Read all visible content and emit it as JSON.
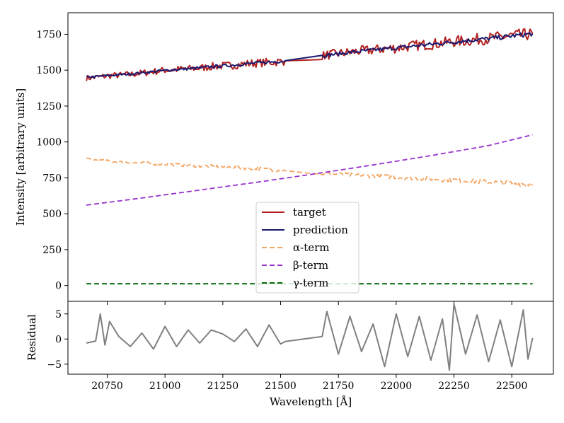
{
  "chart_data": [
    {
      "type": "line",
      "panel": "main",
      "xlabel": "",
      "ylabel": "Intensity [arbitrary units]",
      "xlim": [
        20580,
        22680
      ],
      "ylim": [
        -110,
        1900
      ],
      "x_ticks": [
        20750,
        21000,
        21250,
        21500,
        21750,
        22000,
        22250,
        22500
      ],
      "x_tick_labels": [
        "",
        "",
        "",
        "",
        "",
        "",
        "",
        ""
      ],
      "y_ticks": [
        0,
        250,
        500,
        750,
        1000,
        1250,
        1500,
        1750
      ],
      "y_tick_labels": [
        "0",
        "250",
        "500",
        "750",
        "1000",
        "1250",
        "1500",
        "1750"
      ],
      "legend_position": "center-bottom",
      "gap": [
        21530,
        21670
      ],
      "series": [
        {
          "name": "target",
          "style": "solid",
          "color": "#b22222",
          "x": [
            20660,
            20700,
            20750,
            20800,
            20850,
            20900,
            20950,
            21000,
            21050,
            21100,
            21150,
            21200,
            21250,
            21300,
            21350,
            21400,
            21450,
            21500,
            21520,
            21680,
            21720,
            21750,
            21800,
            21850,
            21900,
            21950,
            22000,
            22050,
            22100,
            22150,
            22200,
            22250,
            22300,
            22350,
            22400,
            22450,
            22500,
            22550,
            22590
          ],
          "y": [
            1445,
            1450,
            1460,
            1465,
            1470,
            1480,
            1490,
            1500,
            1505,
            1510,
            1515,
            1525,
            1530,
            1535,
            1545,
            1550,
            1555,
            1560,
            1565,
            1600,
            1610,
            1615,
            1625,
            1635,
            1640,
            1650,
            1655,
            1665,
            1675,
            1680,
            1690,
            1700,
            1705,
            1715,
            1720,
            1730,
            1740,
            1745,
            1755
          ],
          "noise": 32
        },
        {
          "name": "prediction",
          "style": "solid",
          "color": "#191970",
          "x": [
            20660,
            20700,
            20750,
            20800,
            20850,
            20900,
            20950,
            21000,
            21050,
            21100,
            21150,
            21200,
            21250,
            21300,
            21350,
            21400,
            21450,
            21500,
            21520,
            21680,
            21720,
            21750,
            21800,
            21850,
            21900,
            21950,
            22000,
            22050,
            22100,
            22150,
            22200,
            22250,
            22300,
            22350,
            22400,
            22450,
            22500,
            22550,
            22590
          ],
          "y": [
            1450,
            1455,
            1462,
            1468,
            1474,
            1482,
            1490,
            1498,
            1504,
            1510,
            1516,
            1524,
            1530,
            1536,
            1544,
            1550,
            1556,
            1562,
            1566,
            1600,
            1608,
            1614,
            1624,
            1632,
            1640,
            1648,
            1655,
            1663,
            1672,
            1680,
            1688,
            1697,
            1705,
            1713,
            1720,
            1728,
            1738,
            1746,
            1755
          ],
          "noise": 12
        },
        {
          "name": "α-term",
          "style": "dashed",
          "color": "#f4a460",
          "x": [
            20660,
            20800,
            21000,
            21200,
            21400,
            21520,
            21680,
            21800,
            22000,
            22200,
            22400,
            22590
          ],
          "y": [
            880,
            860,
            845,
            830,
            815,
            800,
            780,
            770,
            755,
            740,
            720,
            705
          ],
          "noise": 14
        },
        {
          "name": "β-term",
          "style": "dashed",
          "color": "#9932cc",
          "x": [
            20660,
            20900,
            21150,
            21400,
            21650,
            21900,
            22150,
            22400,
            22590
          ],
          "y": [
            560,
            610,
            665,
            720,
            778,
            840,
            905,
            975,
            1050
          ],
          "noise": 0
        },
        {
          "name": "γ-term",
          "style": "dashed",
          "color": "#006400",
          "x": [
            20660,
            22590
          ],
          "y": [
            12,
            12
          ],
          "noise": 0
        }
      ]
    },
    {
      "type": "line",
      "panel": "residual",
      "xlabel": "Wavelength [Å]",
      "ylabel": "Residual",
      "xlim": [
        20580,
        22680
      ],
      "ylim": [
        -7,
        7.5
      ],
      "x_ticks": [
        20750,
        21000,
        21250,
        21500,
        21750,
        22000,
        22250,
        22500
      ],
      "x_tick_labels": [
        "20750",
        "21000",
        "21250",
        "21500",
        "21750",
        "22000",
        "22250",
        "22500"
      ],
      "y_ticks": [
        -5,
        0,
        5
      ],
      "y_tick_labels": [
        "−5",
        "0",
        "5"
      ],
      "series": [
        {
          "name": "residual",
          "style": "solid",
          "color": "#808080",
          "x": [
            20660,
            20700,
            20720,
            20740,
            20760,
            20800,
            20850,
            20900,
            20950,
            21000,
            21050,
            21100,
            21150,
            21200,
            21250,
            21300,
            21350,
            21400,
            21450,
            21500,
            21520,
            21680,
            21700,
            21750,
            21800,
            21850,
            21900,
            21950,
            22000,
            22050,
            22100,
            22150,
            22200,
            22230,
            22250,
            22300,
            22350,
            22400,
            22450,
            22500,
            22550,
            22570,
            22590
          ],
          "y": [
            -0.8,
            -0.4,
            5,
            -1.2,
            3.5,
            0.5,
            -1.5,
            1.2,
            -2,
            2.5,
            -1.5,
            1.8,
            -0.8,
            1.8,
            1,
            -0.5,
            2,
            -1.5,
            2.8,
            -1,
            -0.5,
            0.5,
            5.5,
            -3,
            4.5,
            -2.5,
            3,
            -5.5,
            5,
            -3.5,
            4.5,
            -4.2,
            4,
            -6.2,
            7,
            -3,
            4.8,
            -4.5,
            3.8,
            -5.5,
            5.8,
            -4,
            0.2
          ]
        }
      ]
    }
  ]
}
